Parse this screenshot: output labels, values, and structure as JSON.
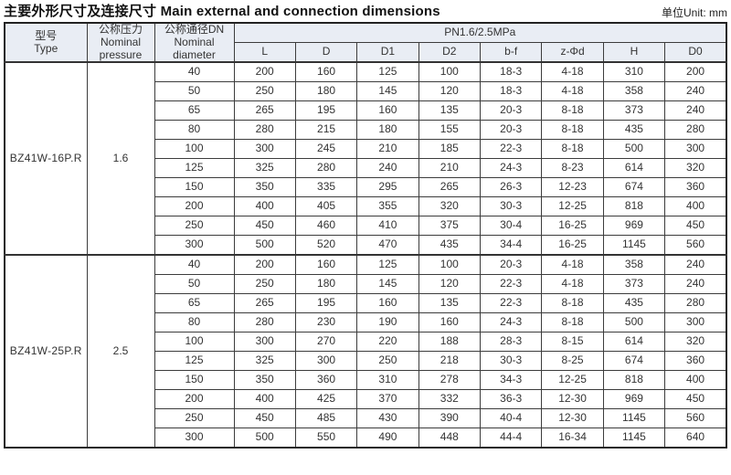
{
  "title": {
    "main": "主要外形尺寸及连接尺寸 Main external and connection dimensions",
    "unit": "单位Unit: mm"
  },
  "table": {
    "band_header": "PN1.6/2.5MPa",
    "left_headers": {
      "type": "型号\nType",
      "pressure": "公称压力\nNominal\npressure",
      "diameter": "公称通径DN\nNominal\ndiameter"
    },
    "dim_columns": [
      "L",
      "D",
      "D1",
      "D2",
      "b-f",
      "z-Φd",
      "H",
      "D0"
    ],
    "groups": [
      {
        "type": "BZ41W-16P.R",
        "pressure": "1.6",
        "rows": [
          [
            "40",
            "200",
            "160",
            "125",
            "100",
            "18-3",
            "4-18",
            "310",
            "200"
          ],
          [
            "50",
            "250",
            "180",
            "145",
            "120",
            "18-3",
            "4-18",
            "358",
            "240"
          ],
          [
            "65",
            "265",
            "195",
            "160",
            "135",
            "20-3",
            "8-18",
            "373",
            "240"
          ],
          [
            "80",
            "280",
            "215",
            "180",
            "155",
            "20-3",
            "8-18",
            "435",
            "280"
          ],
          [
            "100",
            "300",
            "245",
            "210",
            "185",
            "22-3",
            "8-18",
            "500",
            "300"
          ],
          [
            "125",
            "325",
            "280",
            "240",
            "210",
            "24-3",
            "8-23",
            "614",
            "320"
          ],
          [
            "150",
            "350",
            "335",
            "295",
            "265",
            "26-3",
            "12-23",
            "674",
            "360"
          ],
          [
            "200",
            "400",
            "405",
            "355",
            "320",
            "30-3",
            "12-25",
            "818",
            "400"
          ],
          [
            "250",
            "450",
            "460",
            "410",
            "375",
            "30-4",
            "16-25",
            "969",
            "450"
          ],
          [
            "300",
            "500",
            "520",
            "470",
            "435",
            "34-4",
            "16-25",
            "1145",
            "560"
          ]
        ]
      },
      {
        "type": "BZ41W-25P.R",
        "pressure": "2.5",
        "rows": [
          [
            "40",
            "200",
            "160",
            "125",
            "100",
            "20-3",
            "4-18",
            "358",
            "240"
          ],
          [
            "50",
            "250",
            "180",
            "145",
            "120",
            "22-3",
            "4-18",
            "373",
            "240"
          ],
          [
            "65",
            "265",
            "195",
            "160",
            "135",
            "22-3",
            "8-18",
            "435",
            "280"
          ],
          [
            "80",
            "280",
            "230",
            "190",
            "160",
            "24-3",
            "8-18",
            "500",
            "300"
          ],
          [
            "100",
            "300",
            "270",
            "220",
            "188",
            "28-3",
            "8-15",
            "614",
            "320"
          ],
          [
            "125",
            "325",
            "300",
            "250",
            "218",
            "30-3",
            "8-25",
            "674",
            "360"
          ],
          [
            "150",
            "350",
            "360",
            "310",
            "278",
            "34-3",
            "12-25",
            "818",
            "400"
          ],
          [
            "200",
            "400",
            "425",
            "370",
            "332",
            "36-3",
            "12-30",
            "969",
            "450"
          ],
          [
            "250",
            "450",
            "485",
            "430",
            "390",
            "40-4",
            "12-30",
            "1145",
            "560"
          ],
          [
            "300",
            "500",
            "550",
            "490",
            "448",
            "44-4",
            "16-34",
            "1145",
            "640"
          ]
        ]
      }
    ]
  }
}
